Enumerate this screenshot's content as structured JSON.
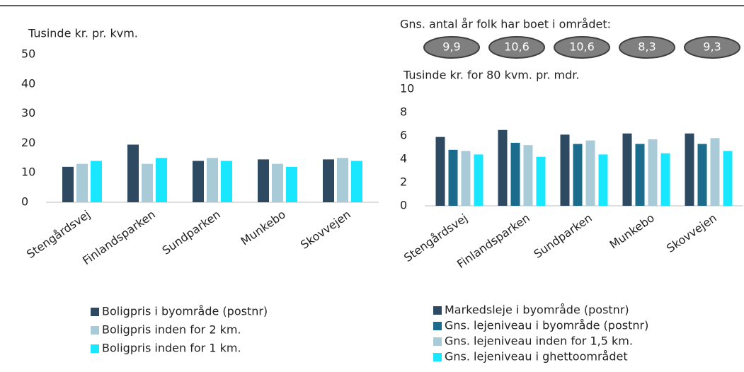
{
  "chart_data": [
    {
      "type": "bar",
      "ylabel": "Tusinde kr. pr. kvm.",
      "categories": [
        "Stengårdsvej",
        "Finlandsparken",
        "Sundparken",
        "Munkebo",
        "Skovvejen"
      ],
      "ylim": [
        0,
        50
      ],
      "yticks": [
        0,
        10,
        20,
        30,
        40,
        50
      ],
      "series": [
        {
          "name": "Boligpris i byområde (postnr)",
          "color": "#2e4a62",
          "values": [
            12,
            19.5,
            14,
            14.5,
            14.5
          ]
        },
        {
          "name": "Boligpris inden for 2 km.",
          "color": "#a9cbd7",
          "values": [
            13,
            13,
            15,
            13,
            15
          ]
        },
        {
          "name": "Boligpris inden for 1 km.",
          "color": "#19e6ff",
          "values": [
            14,
            15,
            14,
            12,
            14
          ]
        }
      ]
    },
    {
      "type": "bar",
      "ylabel": "Tusinde kr. for 80 kvm. pr. mdr.",
      "annotation": "Gns. antal år folk har boet i området:",
      "badges": [
        "9,9",
        "10,6",
        "10,6",
        "8,3",
        "9,3"
      ],
      "categories": [
        "Stengårdsvej",
        "Finlandsparken",
        "Sundparken",
        "Munkebo",
        "Skovvejen"
      ],
      "ylim": [
        0,
        10
      ],
      "yticks": [
        0,
        2,
        4,
        6,
        8,
        10
      ],
      "series": [
        {
          "name": "Markedsleje i byområde (postnr)",
          "color": "#2e4a62",
          "values": [
            5.9,
            6.5,
            6.1,
            6.2,
            6.2
          ]
        },
        {
          "name": "Gns. lejeniveau i byområde (postnr)",
          "color": "#1a6b8c",
          "values": [
            4.8,
            5.4,
            5.3,
            5.3,
            5.3
          ]
        },
        {
          "name": "Gns. lejeniveau inden for 1,5 km.",
          "color": "#a9cbd7",
          "values": [
            4.7,
            5.2,
            5.6,
            5.7,
            5.8
          ]
        },
        {
          "name": "Gns. lejeniveau i ghettoområdet",
          "color": "#19e6ff",
          "values": [
            4.4,
            4.2,
            4.4,
            4.5,
            4.7
          ]
        }
      ]
    }
  ]
}
